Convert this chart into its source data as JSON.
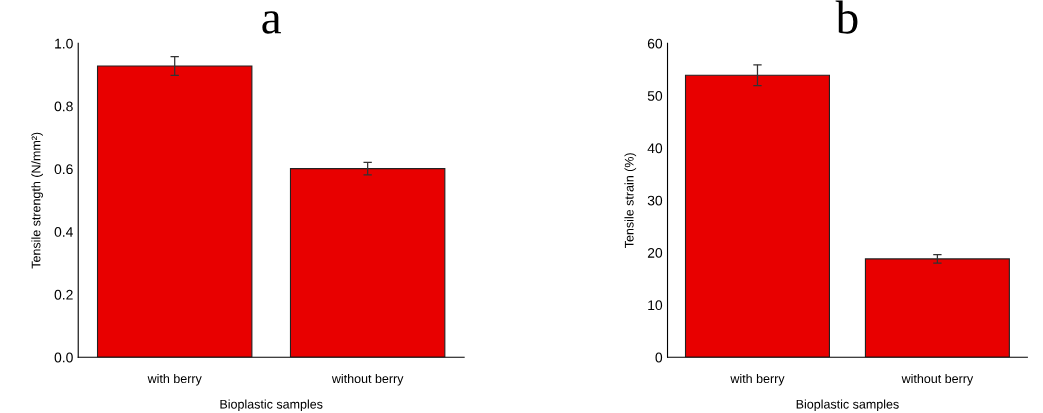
{
  "chart_data": [
    {
      "type": "bar",
      "title": "a",
      "xlabel": "Bioplastic samples",
      "ylabel": "Tensile strength (N/mm²)",
      "categories": [
        "with berry",
        "without berry"
      ],
      "values": [
        0.928,
        0.601
      ],
      "errors": [
        0.03,
        0.02
      ],
      "color": "#e80000",
      "ylim": [
        0,
        1.0
      ],
      "yticks": [
        {
          "value": 0,
          "label": "0.0"
        },
        0.2,
        0.4,
        0.6,
        0.8,
        {
          "value": 1,
          "label": "1.0"
        }
      ],
      "grid": false
    },
    {
      "type": "bar",
      "title": "b",
      "xlabel": "Bioplastic samples",
      "ylabel": "Tensile strain (%)",
      "categories": [
        "with berry",
        "without berry"
      ],
      "values": [
        53.9,
        18.8
      ],
      "errors": [
        2.0,
        0.8
      ],
      "color": "#e80000",
      "ylim": [
        0,
        60
      ],
      "yticks": [
        0,
        10,
        20,
        30,
        40,
        50,
        60
      ],
      "grid": false
    }
  ]
}
